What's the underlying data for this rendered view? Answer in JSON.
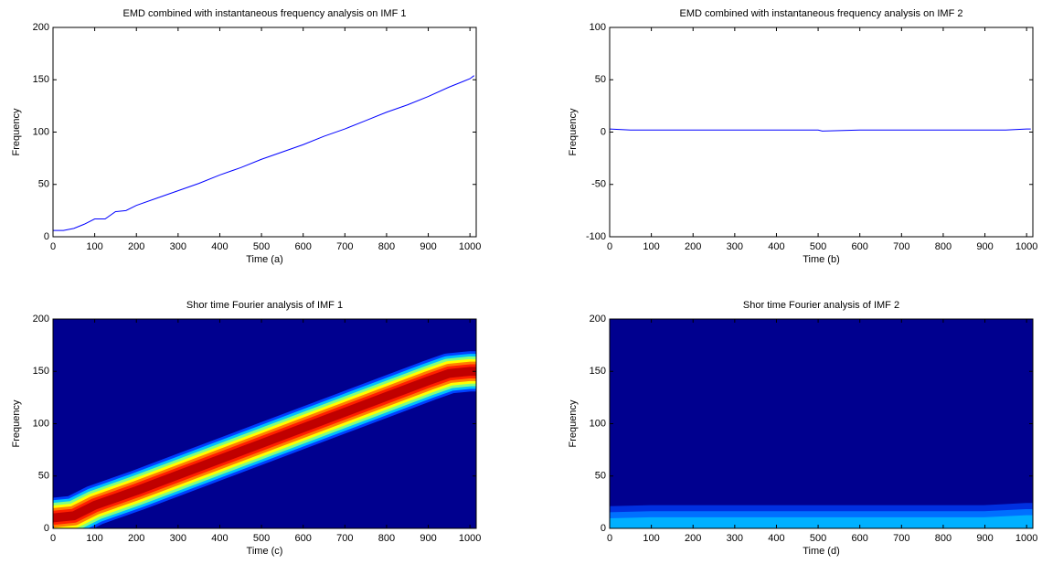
{
  "chart_data": [
    {
      "type": "line",
      "title": "EMD combined with instantaneous frequency analysis on IMF 1",
      "xlabel": "Time (a)",
      "ylabel": "Frequency",
      "color": "#0000ff",
      "x": [
        0,
        25,
        50,
        75,
        100,
        125,
        150,
        175,
        200,
        250,
        300,
        350,
        400,
        450,
        500,
        550,
        600,
        650,
        700,
        750,
        800,
        850,
        900,
        950,
        1000,
        1010
      ],
      "values": [
        6,
        6,
        8,
        12,
        17,
        17,
        24,
        25,
        30,
        37,
        44,
        51,
        59,
        66,
        74,
        81,
        88,
        96,
        103,
        111,
        119,
        126,
        134,
        143,
        151,
        154
      ],
      "xlim": [
        0,
        1015
      ],
      "ylim": [
        0,
        200
      ],
      "xticks": [
        0,
        100,
        200,
        300,
        400,
        500,
        600,
        700,
        800,
        900,
        1000
      ],
      "yticks": [
        0,
        50,
        100,
        150,
        200
      ]
    },
    {
      "type": "line",
      "title": "EMD combined with instantaneous frequency analysis on IMF 2",
      "xlabel": "Time (b)",
      "ylabel": "Frequency",
      "color": "#0000ff",
      "x": [
        0,
        50,
        200,
        400,
        500,
        510,
        600,
        800,
        950,
        1000,
        1010
      ],
      "values": [
        3,
        2,
        2,
        2,
        2,
        1,
        2,
        2,
        2,
        3,
        3
      ],
      "xlim": [
        0,
        1015
      ],
      "ylim": [
        -100,
        100
      ],
      "xticks": [
        0,
        100,
        200,
        300,
        400,
        500,
        600,
        700,
        800,
        900,
        1000
      ],
      "yticks": [
        -100,
        -50,
        0,
        50,
        100
      ]
    },
    {
      "type": "spectrogram",
      "title": "Shor time Fourier analysis of IMF 1",
      "xlabel": "Time (c)",
      "ylabel": "Frequency",
      "background_color": "#00008f",
      "band_colors": [
        "#0040ff",
        "#00c0ff",
        "#80ff80",
        "#ffff00",
        "#ff8000",
        "#ff2000",
        "#c00000"
      ],
      "x": [
        0,
        50,
        100,
        200,
        300,
        400,
        500,
        600,
        700,
        800,
        900,
        950,
        1000,
        1015
      ],
      "values": [
        10,
        12,
        22,
        36,
        51,
        66,
        81,
        96,
        111,
        126,
        141,
        148,
        150,
        150
      ],
      "xlim": [
        0,
        1015
      ],
      "ylim": [
        0,
        200
      ],
      "xticks": [
        0,
        100,
        200,
        300,
        400,
        500,
        600,
        700,
        800,
        900,
        1000
      ],
      "yticks": [
        0,
        50,
        100,
        150,
        200
      ]
    },
    {
      "type": "spectrogram",
      "title": "Shor time Fourier analysis of IMF 2",
      "xlabel": "Time (d)",
      "ylabel": "Frequency",
      "background_color": "#00008f",
      "band_colors": [
        "#0030e0",
        "#0070ff",
        "#00b0ff"
      ],
      "x": [
        0,
        100,
        300,
        500,
        700,
        900,
        950,
        1000,
        1015
      ],
      "values": [
        2,
        3,
        3,
        3,
        3,
        3,
        4,
        5,
        5
      ],
      "xlim": [
        0,
        1015
      ],
      "ylim": [
        0,
        200
      ],
      "xticks": [
        0,
        100,
        200,
        300,
        400,
        500,
        600,
        700,
        800,
        900,
        1000
      ],
      "yticks": [
        0,
        50,
        100,
        150,
        200
      ]
    }
  ]
}
